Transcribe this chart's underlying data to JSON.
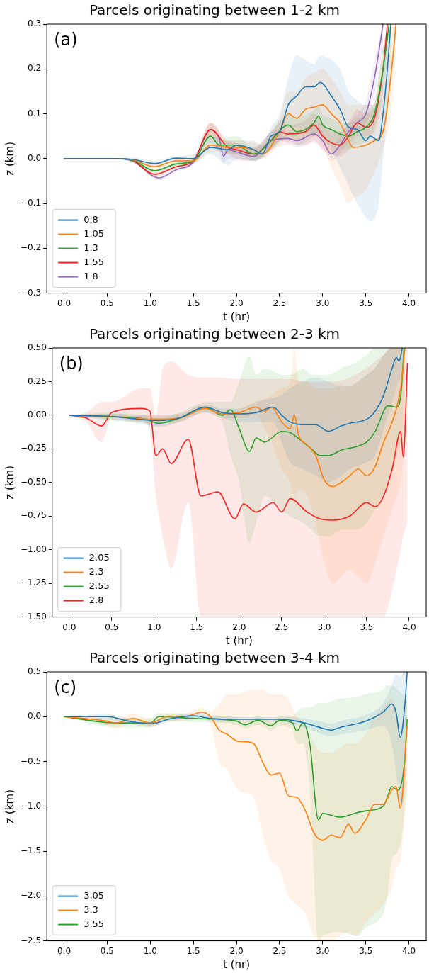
{
  "chart_data": [
    {
      "type": "line",
      "title": "Parcels originating between 1-2 km",
      "xlabel": "t (hr)",
      "ylabel": "z (km)",
      "annotations": [
        "(a)"
      ],
      "legend": "bottom left",
      "grid": false,
      "marker": "none",
      "xlim": [
        -0.2,
        4.2
      ],
      "xticks": [
        {
          "value": 0,
          "label": "0.0"
        },
        {
          "value": 0.5,
          "label": "0.5"
        },
        {
          "value": 1,
          "label": "1.0"
        },
        {
          "value": 1.5,
          "label": "1.5"
        },
        {
          "value": 2,
          "label": "2.0"
        },
        {
          "value": 2.5,
          "label": "2.5"
        },
        {
          "value": 3,
          "label": "3.0"
        },
        {
          "value": 3.5,
          "label": "3.5"
        },
        {
          "value": 4,
          "label": "4.0"
        }
      ],
      "ylim": [
        -0.3,
        0.3
      ],
      "yticks": [
        {
          "value": -0.3,
          "label": "−0.3"
        },
        {
          "value": -0.2,
          "label": "−0.2"
        },
        {
          "value": -0.1,
          "label": "−0.1"
        },
        {
          "value": 0,
          "label": "0.0"
        },
        {
          "value": 0.1,
          "label": "0.1"
        },
        {
          "value": 0.2,
          "label": "0.2"
        },
        {
          "value": 0.3,
          "label": "0.3"
        }
      ],
      "series": [
        {
          "name": "0.8",
          "color": "#1f77b4",
          "x": [
            0,
            0.6,
            0.8,
            1.05,
            1.3,
            1.5,
            1.7,
            1.9,
            2.0,
            2.2,
            2.3,
            2.4,
            2.5,
            2.6,
            2.7,
            2.8,
            2.9,
            2.97,
            3.1,
            3.2,
            3.3,
            3.4,
            3.5,
            3.55,
            3.65,
            3.7,
            3.75,
            3.79
          ],
          "values": [
            0,
            0,
            -0.002,
            -0.011,
            0.001,
            0,
            0.025,
            0.02,
            0.03,
            0.02,
            0.01,
            0.05,
            0.06,
            0.12,
            0.14,
            0.16,
            0.16,
            0.17,
            0.14,
            0.11,
            0.07,
            0.065,
            0.04,
            0.05,
            0.04,
            0.1,
            0.2,
            0.3
          ],
          "lower": [
            0,
            0,
            -0.005,
            -0.015,
            -0.005,
            -0.01,
            0.01,
            -0.015,
            0,
            -0.005,
            0,
            0.02,
            0.04,
            0.07,
            0.07,
            0.06,
            0.05,
            0.05,
            0.02,
            -0.02,
            -0.06,
            -0.1,
            -0.13,
            -0.14,
            -0.1,
            0,
            0.1,
            0.2
          ],
          "upper": [
            0,
            0,
            0.002,
            -0.005,
            0.005,
            0.01,
            0.05,
            0.04,
            0.04,
            0.04,
            0.03,
            0.07,
            0.1,
            0.18,
            0.23,
            0.22,
            0.21,
            0.23,
            0.22,
            0.2,
            0.15,
            0.13,
            0.12,
            0.12,
            0.12,
            0.2,
            0.3,
            0.3
          ]
        },
        {
          "name": "1.05",
          "color": "#ff7f0e",
          "x": [
            0,
            0.6,
            0.8,
            1.05,
            1.3,
            1.5,
            1.7,
            1.9,
            2.0,
            2.2,
            2.3,
            2.5,
            2.6,
            2.7,
            2.8,
            2.9,
            3.0,
            3.1,
            3.2,
            3.3,
            3.35,
            3.5,
            3.6,
            3.7,
            3.8,
            3.85
          ],
          "values": [
            0,
            0,
            -0.003,
            -0.018,
            -0.005,
            -0.005,
            0.03,
            0.025,
            0.025,
            0.02,
            0.01,
            0.06,
            0.1,
            0.09,
            0.11,
            0.115,
            0.12,
            0.1,
            0.08,
            0.04,
            0.025,
            0.03,
            0.04,
            0.06,
            0.2,
            0.3
          ],
          "lower": [
            0,
            0,
            -0.006,
            -0.022,
            -0.01,
            -0.01,
            0.015,
            0.01,
            0.01,
            0.005,
            0,
            0.03,
            0.05,
            0.04,
            0.05,
            0.05,
            0.03,
            -0.02,
            -0.06,
            -0.1,
            -0.09,
            -0.07,
            -0.03,
            0.02,
            0.12,
            0.25
          ],
          "upper": [
            0,
            0,
            0,
            -0.014,
            0,
            0,
            0.08,
            0.04,
            0.04,
            0.035,
            0.03,
            0.09,
            0.15,
            0.15,
            0.18,
            0.19,
            0.2,
            0.18,
            0.15,
            0.12,
            0.12,
            0.12,
            0.12,
            0.15,
            0.3,
            0.3
          ]
        },
        {
          "name": "1.3",
          "color": "#2ca02c",
          "x": [
            0,
            0.6,
            0.8,
            1.05,
            1.3,
            1.5,
            1.7,
            1.8,
            2.0,
            2.2,
            2.4,
            2.6,
            2.7,
            2.9,
            2.95,
            3.0,
            3.1,
            3.2,
            3.3,
            3.4,
            3.5,
            3.6,
            3.7,
            3.77
          ],
          "values": [
            0,
            0,
            -0.004,
            -0.027,
            -0.012,
            -0.005,
            0.05,
            0.03,
            0.03,
            0.01,
            0.04,
            0.075,
            0.06,
            0.08,
            0.095,
            0.075,
            0.065,
            0.055,
            0.05,
            0.06,
            0.07,
            0.1,
            0.2,
            0.3
          ],
          "lower": [
            0,
            0,
            -0.007,
            -0.032,
            -0.017,
            -0.01,
            0.035,
            0.015,
            0.01,
            -0.005,
            0.02,
            0.05,
            0.03,
            0.05,
            0.06,
            0.04,
            0.03,
            0.02,
            0.02,
            0.03,
            0.04,
            0.07,
            0.15,
            0.25
          ],
          "upper": [
            0,
            0,
            -0.001,
            -0.022,
            -0.007,
            0,
            0.065,
            0.045,
            0.05,
            0.025,
            0.06,
            0.1,
            0.09,
            0.11,
            0.12,
            0.1,
            0.09,
            0.08,
            0.08,
            0.09,
            0.1,
            0.13,
            0.25,
            0.3
          ]
        },
        {
          "name": "1.55",
          "color": "#ee2222",
          "x": [
            0,
            0.6,
            0.8,
            1.05,
            1.3,
            1.5,
            1.7,
            1.9,
            2.0,
            2.2,
            2.4,
            2.5,
            2.6,
            2.8,
            2.9,
            3.0,
            3.1,
            3.2,
            3.3,
            3.4,
            3.5,
            3.6,
            3.7,
            3.75
          ],
          "values": [
            0,
            0,
            -0.005,
            -0.035,
            -0.018,
            -0.005,
            0.065,
            0.025,
            0.02,
            0.01,
            0.04,
            0.06,
            0.055,
            0.06,
            0.075,
            0.05,
            0.035,
            0.03,
            0.05,
            0.08,
            0.07,
            0.09,
            0.2,
            0.3
          ],
          "lower": [
            0,
            0,
            -0.008,
            -0.04,
            -0.023,
            -0.01,
            0.05,
            0.01,
            0,
            -0.005,
            0.02,
            0.04,
            0.035,
            0.03,
            0.04,
            0.02,
            0.01,
            0.005,
            0.02,
            0.05,
            0.05,
            0.06,
            0.15,
            0.25
          ],
          "upper": [
            0,
            0,
            -0.002,
            -0.03,
            -0.013,
            0,
            0.08,
            0.04,
            0.035,
            0.025,
            0.06,
            0.08,
            0.075,
            0.085,
            0.1,
            0.08,
            0.06,
            0.06,
            0.08,
            0.11,
            0.1,
            0.12,
            0.25,
            0.3
          ]
        },
        {
          "name": "1.8",
          "color": "#9467bd",
          "x": [
            0,
            0.6,
            0.8,
            1.1,
            1.3,
            1.5,
            1.7,
            1.8,
            1.85,
            1.9,
            2.0,
            2.2,
            2.4,
            2.6,
            2.7,
            2.9,
            3.0,
            3.1,
            3.2,
            3.3,
            3.4,
            3.5,
            3.6,
            3.7
          ],
          "values": [
            0,
            0,
            -0.006,
            -0.043,
            -0.025,
            -0.008,
            0.065,
            0.045,
            0.005,
            0.02,
            0.015,
            0.005,
            0.04,
            0.045,
            0.04,
            0.055,
            0.04,
            0.01,
            0.03,
            0.06,
            0.08,
            0.1,
            0.18,
            0.3
          ],
          "lower": [
            0,
            0,
            -0.009,
            -0.048,
            -0.03,
            -0.013,
            0.05,
            0.02,
            -0.01,
            0,
            -0.005,
            -0.005,
            0.02,
            0.03,
            0.025,
            0.035,
            0.02,
            -0.005,
            0.01,
            0.04,
            0.06,
            0.08,
            0.14,
            0.25
          ],
          "upper": [
            0,
            0,
            -0.003,
            -0.038,
            -0.02,
            0,
            0.08,
            0.06,
            0.02,
            0.035,
            0.03,
            0.02,
            0.06,
            0.065,
            0.06,
            0.075,
            0.06,
            0.03,
            0.05,
            0.08,
            0.1,
            0.13,
            0.22,
            0.3
          ]
        }
      ]
    },
    {
      "type": "line",
      "title": "Parcels originating between 2-3 km",
      "xlabel": "t (hr)",
      "ylabel": "z (km)",
      "annotations": [
        "(b)"
      ],
      "legend": "bottom left",
      "grid": false,
      "marker": "none",
      "xlim": [
        -0.2,
        4.2
      ],
      "xticks": [
        {
          "value": 0,
          "label": "0.0"
        },
        {
          "value": 0.5,
          "label": "0.5"
        },
        {
          "value": 1,
          "label": "1.0"
        },
        {
          "value": 1.5,
          "label": "1.5"
        },
        {
          "value": 2,
          "label": "2.0"
        },
        {
          "value": 2.5,
          "label": "2.5"
        },
        {
          "value": 3,
          "label": "3.0"
        },
        {
          "value": 3.5,
          "label": "3.5"
        },
        {
          "value": 4,
          "label": "4.0"
        }
      ],
      "ylim": [
        -1.5,
        0.5
      ],
      "yticks": [
        {
          "value": -1.5,
          "label": "−1.50"
        },
        {
          "value": -1.25,
          "label": "−1.25"
        },
        {
          "value": -1,
          "label": "−1.00"
        },
        {
          "value": -0.75,
          "label": "−0.75"
        },
        {
          "value": -0.5,
          "label": "−0.50"
        },
        {
          "value": -0.25,
          "label": "−0.25"
        },
        {
          "value": 0,
          "label": "0.00"
        },
        {
          "value": 0.25,
          "label": "0.25"
        },
        {
          "value": 0.5,
          "label": "0.50"
        }
      ],
      "series": [
        {
          "name": "2.05",
          "color": "#1f77b4",
          "x": [
            0,
            0.5,
            1.05,
            1.3,
            1.6,
            1.8,
            2.0,
            2.2,
            2.4,
            2.5,
            2.6,
            2.75,
            2.9,
            3.05,
            3.2,
            3.3,
            3.5,
            3.6,
            3.7,
            3.8,
            3.85,
            3.88,
            3.92
          ],
          "values": [
            0,
            -0.01,
            -0.04,
            -0.02,
            0.06,
            0.02,
            0.01,
            0.02,
            0.06,
            0,
            -0.05,
            -0.07,
            -0.07,
            -0.12,
            -0.08,
            -0.06,
            -0.03,
            0.03,
            0.15,
            0.35,
            0.43,
            0.4,
            0.5
          ],
          "lower": [
            0,
            -0.03,
            -0.08,
            -0.05,
            0.02,
            -0.02,
            -0.05,
            -0.05,
            -0.05,
            -0.2,
            -0.35,
            -0.4,
            -0.45,
            -0.5,
            -0.45,
            -0.4,
            -0.35,
            -0.3,
            -0.1,
            0.1,
            0.2,
            0.25,
            0.3
          ],
          "upper": [
            0,
            0.01,
            0,
            0.01,
            0.08,
            0.05,
            0.05,
            0.1,
            0.13,
            0.15,
            0.2,
            0.25,
            0.28,
            0.25,
            0.22,
            0.22,
            0.3,
            0.35,
            0.45,
            0.5,
            0.5,
            0.5,
            0.5
          ]
        },
        {
          "name": "2.3",
          "color": "#ff7f0e",
          "x": [
            0,
            0.5,
            1.0,
            1.3,
            1.6,
            1.8,
            2.0,
            2.2,
            2.3,
            2.38,
            2.5,
            2.6,
            2.65,
            2.7,
            2.8,
            2.9,
            3.0,
            3.1,
            3.2,
            3.3,
            3.4,
            3.5,
            3.6,
            3.7,
            3.8,
            3.9,
            3.95
          ],
          "values": [
            0,
            -0.01,
            -0.03,
            -0.02,
            0.05,
            0.01,
            0.02,
            0.06,
            0.03,
            0.06,
            -0.05,
            -0.1,
            0,
            -0.15,
            -0.22,
            -0.3,
            -0.48,
            -0.53,
            -0.5,
            -0.45,
            -0.4,
            -0.45,
            -0.38,
            -0.2,
            -0.05,
            0.2,
            0.5
          ],
          "lower": [
            0,
            -0.03,
            -0.06,
            -0.05,
            0.02,
            -0.02,
            -0.02,
            0,
            -0.1,
            -0.2,
            -0.4,
            -0.5,
            -0.6,
            -0.55,
            -0.6,
            -0.8,
            -1.1,
            -1.25,
            -1.2,
            -1.15,
            -1.2,
            -1.25,
            -1.1,
            -0.9,
            -0.7,
            -0.5,
            -0.2
          ],
          "upper": [
            0,
            0.01,
            0,
            0.01,
            0.08,
            0.04,
            0.05,
            0.1,
            0.12,
            0.15,
            0.2,
            0.25,
            0.5,
            0.25,
            0.25,
            0.2,
            0.2,
            0.2,
            0.22,
            0.22,
            0.25,
            0.3,
            0.35,
            0.45,
            0.5,
            0.5,
            0.5
          ]
        },
        {
          "name": "2.55",
          "color": "#2ca02c",
          "x": [
            0,
            0.5,
            0.9,
            1.05,
            1.3,
            1.6,
            1.8,
            1.9,
            2.0,
            2.12,
            2.2,
            2.3,
            2.5,
            2.6,
            2.75,
            2.85,
            2.95,
            3.05,
            3.2,
            3.4,
            3.5,
            3.6,
            3.75,
            3.85,
            3.9,
            3.94
          ],
          "values": [
            0,
            -0.01,
            -0.03,
            -0.06,
            -0.02,
            0.06,
            0,
            0.04,
            -0.1,
            -0.27,
            -0.17,
            -0.2,
            -0.12,
            -0.13,
            -0.2,
            -0.25,
            -0.3,
            -0.3,
            -0.26,
            -0.23,
            -0.2,
            -0.12,
            0.07,
            0.06,
            0.14,
            0.5
          ],
          "lower": [
            0,
            -0.04,
            -0.06,
            -0.09,
            -0.05,
            0.02,
            -0.05,
            -0.3,
            -0.5,
            -0.95,
            -0.8,
            -0.6,
            -0.7,
            -0.75,
            -0.8,
            -0.85,
            -0.9,
            -0.9,
            -0.85,
            -0.85,
            -0.8,
            -0.7,
            -0.5,
            -0.3,
            -0.2,
            0
          ],
          "upper": [
            0,
            0.02,
            0,
            -0.02,
            0.02,
            0.1,
            0.1,
            0.1,
            0.25,
            0.44,
            0.3,
            0.35,
            0.3,
            0.3,
            0.35,
            0.3,
            0.3,
            0.3,
            0.35,
            0.4,
            0.45,
            0.5,
            0.5,
            0.5,
            0.5,
            0.5
          ]
        },
        {
          "name": "2.8",
          "color": "#ff2020",
          "x": [
            0,
            0.2,
            0.38,
            0.5,
            0.85,
            0.95,
            1.02,
            1.1,
            1.2,
            1.4,
            1.55,
            1.75,
            1.95,
            2.05,
            2.2,
            2.4,
            2.5,
            2.6,
            2.8,
            2.95,
            3.1,
            3.3,
            3.5,
            3.6,
            3.7,
            3.8,
            3.9,
            3.93,
            3.98
          ],
          "values": [
            0,
            -0.02,
            -0.08,
            0.02,
            0.05,
            0.03,
            -0.3,
            -0.25,
            -0.36,
            -0.18,
            -0.6,
            -0.57,
            -0.77,
            -0.66,
            -0.72,
            -0.65,
            -0.72,
            -0.62,
            -0.72,
            -0.77,
            -0.78,
            -0.75,
            -0.65,
            -0.68,
            -0.6,
            -0.4,
            -0.12,
            -0.31,
            0.39
          ],
          "lower": [
            0,
            -0.05,
            -0.2,
            -0.02,
            -0.05,
            -0.1,
            -0.6,
            -0.9,
            -1.14,
            -0.65,
            -1.5,
            -1.5,
            -1.5,
            -1.5,
            -1.5,
            -1.5,
            -1.5,
            -1.5,
            -1.5,
            -1.5,
            -1.5,
            -1.5,
            -1.5,
            -1.5,
            -1.5,
            -1.3,
            -1.0,
            -0.9,
            -0.8
          ],
          "upper": [
            0,
            0.02,
            0.1,
            0.1,
            0.2,
            0.2,
            0.0,
            0.35,
            0.4,
            0.3,
            0.28,
            0.28,
            0.27,
            0.27,
            0.27,
            0.27,
            0.27,
            0.27,
            0.25,
            0.25,
            0.25,
            0.28,
            0.35,
            0.4,
            0.45,
            0.5,
            0.5,
            0.5,
            0.5
          ]
        }
      ]
    },
    {
      "type": "line",
      "title": "Parcels originating between 3-4 km",
      "xlabel": "t (hr)",
      "ylabel": "z (km)",
      "annotations": [
        "(c)"
      ],
      "legend": "bottom left",
      "grid": false,
      "marker": "none",
      "xlim": [
        -0.2,
        4.2
      ],
      "xticks": [
        {
          "value": 0,
          "label": "0.0"
        },
        {
          "value": 0.5,
          "label": "0.5"
        },
        {
          "value": 1,
          "label": "1.0"
        },
        {
          "value": 1.5,
          "label": "1.5"
        },
        {
          "value": 2,
          "label": "2.0"
        },
        {
          "value": 2.5,
          "label": "2.5"
        },
        {
          "value": 3,
          "label": "3.0"
        },
        {
          "value": 3.5,
          "label": "3.5"
        },
        {
          "value": 4,
          "label": "4.0"
        }
      ],
      "ylim": [
        -2.5,
        0.5
      ],
      "yticks": [
        {
          "value": -2.5,
          "label": "−2.5"
        },
        {
          "value": -2,
          "label": "−2.0"
        },
        {
          "value": -1.5,
          "label": "−1.5"
        },
        {
          "value": -1,
          "label": "−1.0"
        },
        {
          "value": -0.5,
          "label": "−0.5"
        },
        {
          "value": 0,
          "label": "0.0"
        },
        {
          "value": 0.5,
          "label": "0.5"
        }
      ],
      "series": [
        {
          "name": "3.05",
          "color": "#1f77b4",
          "x": [
            0,
            0.5,
            0.75,
            1.0,
            1.25,
            1.5,
            1.7,
            2.0,
            2.5,
            2.7,
            2.9,
            3.0,
            3.1,
            3.2,
            3.5,
            3.7,
            3.8,
            3.85,
            3.9,
            3.95,
            3.98
          ],
          "values": [
            0,
            0,
            -0.05,
            -0.08,
            -0.02,
            0.01,
            -0.02,
            -0.03,
            -0.03,
            -0.05,
            -0.1,
            -0.13,
            -0.15,
            -0.12,
            -0.05,
            0.05,
            0.14,
            0.05,
            -0.23,
            0.1,
            0.5
          ],
          "lower": [
            0,
            -0.03,
            -0.08,
            -0.11,
            -0.05,
            -0.02,
            -0.05,
            -0.06,
            -0.06,
            -0.09,
            -0.16,
            -0.2,
            -0.22,
            -0.2,
            -0.15,
            -0.1,
            -0.3,
            -0.6,
            -1.0,
            -0.8,
            0.2
          ],
          "upper": [
            0,
            0.03,
            -0.02,
            -0.05,
            0.01,
            0.04,
            0.01,
            0,
            0,
            -0.01,
            -0.04,
            -0.06,
            -0.08,
            -0.05,
            0.02,
            0.15,
            0.35,
            0.48,
            0.45,
            0.5,
            0.5
          ]
        },
        {
          "name": "3.3",
          "color": "#ff7f0e",
          "x": [
            0,
            0.5,
            0.6,
            0.8,
            1.0,
            1.2,
            1.4,
            1.6,
            1.7,
            1.8,
            1.9,
            2.0,
            2.1,
            2.2,
            2.3,
            2.4,
            2.5,
            2.6,
            2.7,
            2.8,
            2.9,
            3.0,
            3.1,
            3.2,
            3.3,
            3.37,
            3.5,
            3.6,
            3.7,
            3.8,
            3.85,
            3.9,
            3.98
          ],
          "values": [
            0,
            -0.05,
            -0.07,
            -0.02,
            -0.07,
            0,
            0,
            0.05,
            0,
            -0.15,
            -0.2,
            -0.27,
            -0.28,
            -0.3,
            -0.5,
            -0.65,
            -0.63,
            -0.88,
            -0.9,
            -1.05,
            -1.3,
            -1.38,
            -1.32,
            -1.35,
            -1.2,
            -1.3,
            -1.15,
            -0.98,
            -0.98,
            -0.82,
            -0.78,
            -1.02,
            -0.1
          ],
          "lower": [
            0,
            -0.1,
            -0.13,
            -0.06,
            -0.12,
            -0.05,
            -0.05,
            0,
            -0.08,
            -0.5,
            -0.6,
            -0.8,
            -0.85,
            -0.9,
            -1.3,
            -1.6,
            -1.7,
            -2.0,
            -2.1,
            -2.2,
            -2.45,
            -2.5,
            -2.5,
            -2.45,
            -2.4,
            -2.45,
            -2.3,
            -2.2,
            -2.1,
            -1.9,
            -1.7,
            -1.6,
            -0.8
          ],
          "upper": [
            0,
            0,
            -0.02,
            0.03,
            -0.02,
            0.04,
            0.04,
            0.1,
            0.05,
            0.15,
            0.25,
            0.25,
            0.28,
            0.3,
            0.3,
            0.25,
            0.25,
            0.2,
            0.0,
            -0.1,
            -0.3,
            -0.4,
            -0.4,
            -0.35,
            -0.3,
            -0.3,
            -0.2,
            0.0,
            0.1,
            0.2,
            0.1,
            -0.2,
            0.2
          ]
        },
        {
          "name": "3.55",
          "color": "#2ca02c",
          "x": [
            0,
            0.6,
            1.0,
            1.1,
            1.5,
            1.8,
            2.0,
            2.1,
            2.25,
            2.4,
            2.5,
            2.65,
            2.7,
            2.77,
            2.85,
            2.95,
            3.0,
            3.2,
            3.4,
            3.5,
            3.7,
            3.75,
            3.8,
            3.87,
            3.95,
            3.98
          ],
          "values": [
            0,
            -0.07,
            -0.07,
            0,
            -0.02,
            -0.03,
            -0.05,
            -0.09,
            -0.04,
            -0.1,
            -0.04,
            -0.07,
            -0.16,
            -0.07,
            -0.3,
            -1.15,
            -1.08,
            -1.12,
            -1.07,
            -1.05,
            -1.0,
            -0.9,
            -0.78,
            -0.82,
            -0.5,
            -0.03
          ],
          "lower": [
            0,
            -0.12,
            -0.12,
            -0.05,
            -0.06,
            -0.07,
            -0.09,
            -0.13,
            -0.09,
            -0.15,
            -0.1,
            -0.15,
            -0.3,
            -0.3,
            -0.8,
            -2.5,
            -2.45,
            -2.4,
            -2.45,
            -2.35,
            -2.2,
            -2.0,
            -1.6,
            -1.5,
            -1.0,
            -0.3
          ],
          "upper": [
            0,
            -0.02,
            -0.02,
            0.04,
            0.02,
            0.01,
            -0.01,
            -0.05,
            0.0,
            -0.05,
            0.0,
            0.0,
            0.05,
            0.1,
            0.1,
            0.15,
            0.15,
            0.2,
            0.22,
            0.25,
            0.3,
            0.35,
            0.35,
            0.3,
            0.2,
            0.1
          ]
        }
      ]
    }
  ]
}
